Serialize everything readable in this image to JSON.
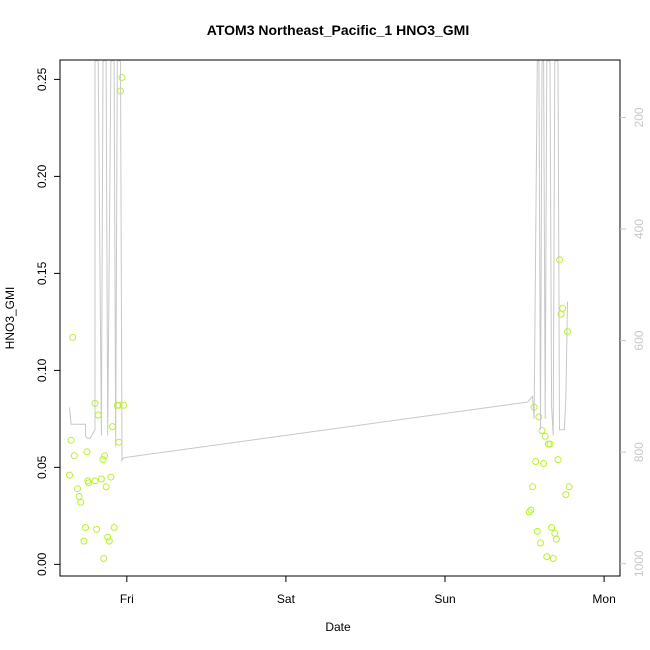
{
  "chart_data": {
    "type": "scatter",
    "title": "ATOM3 Northeast_Pacific_1 HNO3_GMI",
    "xlabel": "Date",
    "ylabel": "HNO3_GMI",
    "x_tick_labels": [
      "Fri",
      "Sat",
      "Sun",
      "Mon"
    ],
    "x_tick_days": [
      0,
      1,
      2,
      3
    ],
    "xlim_days": [
      -0.42,
      3.1
    ],
    "ylim": [
      -0.006,
      0.26
    ],
    "y_ticks": [
      0.0,
      0.05,
      0.1,
      0.15,
      0.2,
      0.25
    ],
    "y_tick_labels": [
      "0.00",
      "0.05",
      "0.10",
      "0.15",
      "0.20",
      "0.25"
    ],
    "y2_ticks": [
      200,
      400,
      600,
      800,
      1000
    ],
    "y2_tick_labels": [
      "200",
      "400",
      "600",
      "800",
      "1000"
    ],
    "y2_lim": [
      1022,
      97
    ],
    "colors": {
      "points": "#b8f22a",
      "line": "#c8c8c8",
      "right_axis": "#c8c8c8"
    },
    "grid": false,
    "series": [
      {
        "kind": "points",
        "x": [
          -0.36,
          -0.35,
          -0.34,
          -0.33,
          -0.31,
          -0.3,
          -0.29,
          -0.27,
          -0.26,
          -0.25,
          -0.245,
          -0.24,
          -0.2,
          -0.2,
          -0.19,
          -0.18,
          -0.16,
          -0.15,
          -0.145,
          -0.14,
          -0.13,
          -0.12,
          -0.11,
          -0.1,
          -0.09,
          -0.08,
          -0.06,
          -0.05,
          -0.05,
          -0.04,
          -0.03,
          -0.02,
          2.53,
          2.54,
          2.55,
          2.56,
          2.57,
          2.58,
          2.59,
          2.6,
          2.61,
          2.62,
          2.63,
          2.64,
          2.65,
          2.66,
          2.67,
          2.68,
          2.69,
          2.7,
          2.71,
          2.72,
          2.73,
          2.74,
          2.76,
          2.77,
          2.78
        ],
        "y": [
          0.046,
          0.064,
          0.117,
          0.056,
          0.039,
          0.035,
          0.032,
          0.012,
          0.019,
          0.058,
          0.043,
          0.042,
          0.083,
          0.043,
          0.018,
          0.077,
          0.044,
          0.054,
          0.003,
          0.056,
          0.04,
          0.014,
          0.012,
          0.045,
          0.071,
          0.019,
          0.082,
          0.063,
          0.082,
          0.244,
          0.251,
          0.082,
          0.027,
          0.028,
          0.04,
          0.081,
          0.053,
          0.017,
          0.076,
          0.011,
          0.069,
          0.052,
          0.066,
          0.004,
          0.062,
          0.062,
          0.019,
          0.003,
          0.016,
          0.013,
          0.054,
          0.157,
          0.129,
          0.132,
          0.036,
          0.12,
          0.04
        ]
      },
      {
        "kind": "line",
        "x": [
          -0.36,
          -0.35,
          -0.26,
          -0.26,
          -0.25,
          -0.23,
          -0.2,
          -0.2,
          -0.19,
          -0.18,
          -0.16,
          -0.15,
          -0.14,
          -0.13,
          -0.12,
          -0.1,
          -0.09,
          -0.08,
          -0.07,
          -0.06,
          -0.05,
          -0.04,
          -0.03,
          -0.02,
          2.52,
          2.55,
          2.56,
          2.58,
          2.59,
          2.6,
          2.61,
          2.62,
          2.63,
          2.64,
          2.65,
          2.66,
          2.67,
          2.68,
          2.69,
          2.7,
          2.71,
          2.72,
          2.74,
          2.75,
          2.76,
          2.77
        ],
        "y": [
          720,
          750,
          750,
          770,
          775,
          775,
          760,
          100,
          97,
          100,
          770,
          100,
          97,
          100,
          770,
          100,
          97,
          100,
          790,
          100,
          97,
          100,
          815,
          810,
          710,
          700,
          740,
          100,
          97,
          760,
          100,
          97,
          740,
          100,
          97,
          100,
          720,
          770,
          100,
          97,
          100,
          760,
          760,
          760,
          700,
          530
        ]
      }
    ]
  }
}
